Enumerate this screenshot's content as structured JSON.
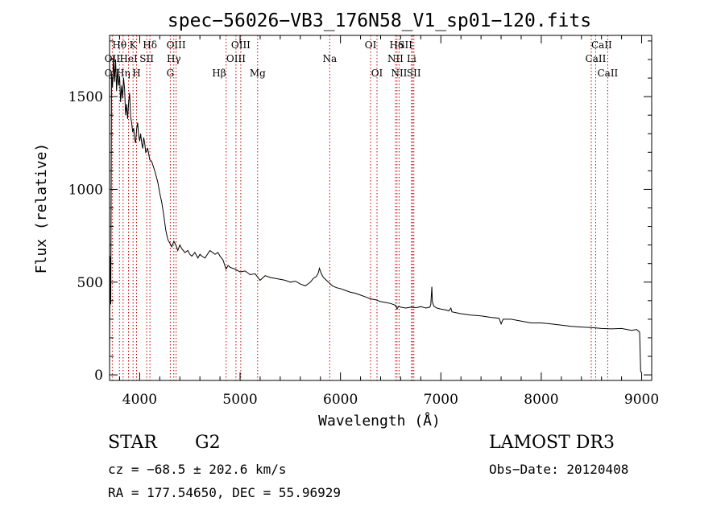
{
  "chart_data": {
    "type": "line",
    "title": "spec−56026−VB3_176N58_V1_sp01−120.fits",
    "xlabel": "Wavelength (Å)",
    "ylabel": "Flux (relative)",
    "xlim": [
      3700,
      9100
    ],
    "ylim": [
      -30,
      1830
    ],
    "x_ticks": [
      4000,
      5000,
      6000,
      7000,
      8000,
      9000
    ],
    "y_ticks": [
      0,
      500,
      1000,
      1500
    ],
    "series": [
      {
        "name": "flux",
        "color": "#000000",
        "points": [
          [
            3700,
            30
          ],
          [
            3705,
            640
          ],
          [
            3712,
            380
          ],
          [
            3720,
            1620
          ],
          [
            3730,
            1550
          ],
          [
            3740,
            1720
          ],
          [
            3750,
            1580
          ],
          [
            3760,
            1700
          ],
          [
            3770,
            1530
          ],
          [
            3780,
            1650
          ],
          [
            3790,
            1560
          ],
          [
            3800,
            1610
          ],
          [
            3810,
            1470
          ],
          [
            3820,
            1560
          ],
          [
            3830,
            1490
          ],
          [
            3840,
            1600
          ],
          [
            3850,
            1540
          ],
          [
            3860,
            1400
          ],
          [
            3870,
            1460
          ],
          [
            3880,
            1380
          ],
          [
            3890,
            1470
          ],
          [
            3900,
            1520
          ],
          [
            3910,
            1390
          ],
          [
            3920,
            1360
          ],
          [
            3930,
            1310
          ],
          [
            3940,
            1330
          ],
          [
            3950,
            1270
          ],
          [
            3960,
            1250
          ],
          [
            3970,
            1330
          ],
          [
            3980,
            1360
          ],
          [
            3990,
            1290
          ],
          [
            4000,
            1260
          ],
          [
            4010,
            1300
          ],
          [
            4020,
            1250
          ],
          [
            4030,
            1220
          ],
          [
            4040,
            1280
          ],
          [
            4050,
            1250
          ],
          [
            4060,
            1200
          ],
          [
            4080,
            1220
          ],
          [
            4100,
            1160
          ],
          [
            4120,
            1150
          ],
          [
            4150,
            1100
          ],
          [
            4180,
            1040
          ],
          [
            4200,
            980
          ],
          [
            4220,
            930
          ],
          [
            4240,
            860
          ],
          [
            4260,
            780
          ],
          [
            4280,
            730
          ],
          [
            4300,
            710
          ],
          [
            4320,
            690
          ],
          [
            4340,
            720
          ],
          [
            4360,
            700
          ],
          [
            4380,
            670
          ],
          [
            4400,
            700
          ],
          [
            4420,
            680
          ],
          [
            4450,
            660
          ],
          [
            4480,
            670
          ],
          [
            4500,
            650
          ],
          [
            4520,
            640
          ],
          [
            4550,
            660
          ],
          [
            4580,
            630
          ],
          [
            4600,
            650
          ],
          [
            4620,
            640
          ],
          [
            4650,
            630
          ],
          [
            4700,
            670
          ],
          [
            4750,
            650
          ],
          [
            4780,
            660
          ],
          [
            4800,
            640
          ],
          [
            4830,
            620
          ],
          [
            4860,
            570
          ],
          [
            4880,
            590
          ],
          [
            4900,
            580
          ],
          [
            4950,
            570
          ],
          [
            5000,
            555
          ],
          [
            5050,
            560
          ],
          [
            5100,
            540
          ],
          [
            5150,
            545
          ],
          [
            5200,
            510
          ],
          [
            5250,
            535
          ],
          [
            5300,
            525
          ],
          [
            5350,
            520
          ],
          [
            5400,
            515
          ],
          [
            5450,
            510
          ],
          [
            5500,
            500
          ],
          [
            5550,
            505
          ],
          [
            5600,
            490
          ],
          [
            5650,
            480
          ],
          [
            5700,
            500
          ],
          [
            5730,
            520
          ],
          [
            5760,
            530
          ],
          [
            5780,
            550
          ],
          [
            5790,
            575
          ],
          [
            5800,
            560
          ],
          [
            5810,
            545
          ],
          [
            5830,
            525
          ],
          [
            5860,
            510
          ],
          [
            5890,
            495
          ],
          [
            5920,
            480
          ],
          [
            5960,
            470
          ],
          [
            6000,
            465
          ],
          [
            6050,
            455
          ],
          [
            6100,
            445
          ],
          [
            6150,
            440
          ],
          [
            6200,
            430
          ],
          [
            6250,
            420
          ],
          [
            6300,
            410
          ],
          [
            6350,
            405
          ],
          [
            6400,
            395
          ],
          [
            6450,
            390
          ],
          [
            6500,
            385
          ],
          [
            6550,
            375
          ],
          [
            6563,
            355
          ],
          [
            6580,
            370
          ],
          [
            6600,
            365
          ],
          [
            6650,
            360
          ],
          [
            6700,
            365
          ],
          [
            6750,
            362
          ],
          [
            6800,
            368
          ],
          [
            6850,
            360
          ],
          [
            6890,
            365
          ],
          [
            6900,
            380
          ],
          [
            6910,
            475
          ],
          [
            6915,
            395
          ],
          [
            6930,
            370
          ],
          [
            6960,
            360
          ],
          [
            7000,
            355
          ],
          [
            7050,
            350
          ],
          [
            7080,
            345
          ],
          [
            7100,
            360
          ],
          [
            7110,
            340
          ],
          [
            7150,
            335
          ],
          [
            7200,
            330
          ],
          [
            7300,
            322
          ],
          [
            7400,
            318
          ],
          [
            7500,
            310
          ],
          [
            7580,
            305
          ],
          [
            7600,
            275
          ],
          [
            7620,
            300
          ],
          [
            7700,
            300
          ],
          [
            7800,
            290
          ],
          [
            7900,
            280
          ],
          [
            8000,
            280
          ],
          [
            8100,
            275
          ],
          [
            8200,
            268
          ],
          [
            8300,
            262
          ],
          [
            8400,
            258
          ],
          [
            8500,
            255
          ],
          [
            8600,
            250
          ],
          [
            8700,
            248
          ],
          [
            8800,
            250
          ],
          [
            8900,
            240
          ],
          [
            8950,
            245
          ],
          [
            8980,
            230
          ],
          [
            8990,
            20
          ],
          [
            9000,
            10
          ]
        ]
      }
    ],
    "annotations": [
      {
        "label": "OII",
        "x": 3727,
        "row": 3,
        "anchor": "middle"
      },
      {
        "label": "Hθ",
        "x": 3798,
        "row": 1,
        "anchor": "middle"
      },
      {
        "label": "OII",
        "x": 3727,
        "row": 2,
        "anchor": "middle"
      },
      {
        "label": "Hη",
        "x": 3835,
        "row": 3,
        "anchor": "middle"
      },
      {
        "label": "HeI",
        "x": 3889,
        "row": 2,
        "anchor": "middle"
      },
      {
        "label": "K",
        "x": 3934,
        "row": 1,
        "anchor": "middle"
      },
      {
        "label": "H",
        "x": 3969,
        "row": 3,
        "anchor": "middle"
      },
      {
        "label": "SII",
        "x": 4070,
        "row": 2,
        "anchor": "middle"
      },
      {
        "label": "Hδ",
        "x": 4102,
        "row": 1,
        "anchor": "middle"
      },
      {
        "label": "OIII",
        "x": 4363,
        "row": 1,
        "anchor": "middle"
      },
      {
        "label": "Hγ",
        "x": 4340,
        "row": 2,
        "anchor": "middle"
      },
      {
        "label": "G",
        "x": 4305,
        "row": 3,
        "anchor": "middle"
      },
      {
        "label": "Hβ",
        "x": 4861,
        "row": 3,
        "anchor": "end"
      },
      {
        "label": "OIII",
        "x": 5007,
        "row": 1,
        "anchor": "middle"
      },
      {
        "label": "OIII",
        "x": 4959,
        "row": 2,
        "anchor": "middle"
      },
      {
        "label": "Mg",
        "x": 5175,
        "row": 3,
        "anchor": "middle"
      },
      {
        "label": "Na",
        "x": 5893,
        "row": 2,
        "anchor": "middle"
      },
      {
        "label": "OI",
        "x": 6300,
        "row": 1,
        "anchor": "middle"
      },
      {
        "label": "OI",
        "x": 6364,
        "row": 3,
        "anchor": "middle"
      },
      {
        "label": "Hα",
        "x": 6563,
        "row": 1,
        "anchor": "middle"
      },
      {
        "label": "SII",
        "x": 6717,
        "row": 1,
        "anchor": "end"
      },
      {
        "label": "NII",
        "x": 6548,
        "row": 2,
        "anchor": "middle"
      },
      {
        "label": "Li",
        "x": 6708,
        "row": 2,
        "anchor": "middle"
      },
      {
        "label": "NII",
        "x": 6584,
        "row": 3,
        "anchor": "middle"
      },
      {
        "label": "SII",
        "x": 6731,
        "row": 3,
        "anchor": "middle"
      },
      {
        "label": "CaII",
        "x": 8498,
        "row": 1,
        "anchor": "start"
      },
      {
        "label": "CaII",
        "x": 8542,
        "row": 2,
        "anchor": "middle"
      },
      {
        "label": "CaII",
        "x": 8662,
        "row": 3,
        "anchor": "middle"
      }
    ],
    "marker_lines": [
      3727,
      3798,
      3835,
      3889,
      3934,
      3969,
      4070,
      4102,
      4305,
      4340,
      4363,
      4861,
      4959,
      5007,
      5175,
      5893,
      6300,
      6364,
      6548,
      6563,
      6584,
      6708,
      6717,
      6731,
      8498,
      8542,
      8662
    ],
    "marker_color": "#c00000",
    "line_color": "#000000"
  },
  "info": {
    "class": "STAR",
    "subclass": "G2",
    "survey": "LAMOST DR3",
    "cz": "cz = −68.5 ± 202.6 km/s",
    "obs_date": "Obs−Date: 20120408",
    "radec": "RA = 177.54650, DEC =  55.96929"
  }
}
